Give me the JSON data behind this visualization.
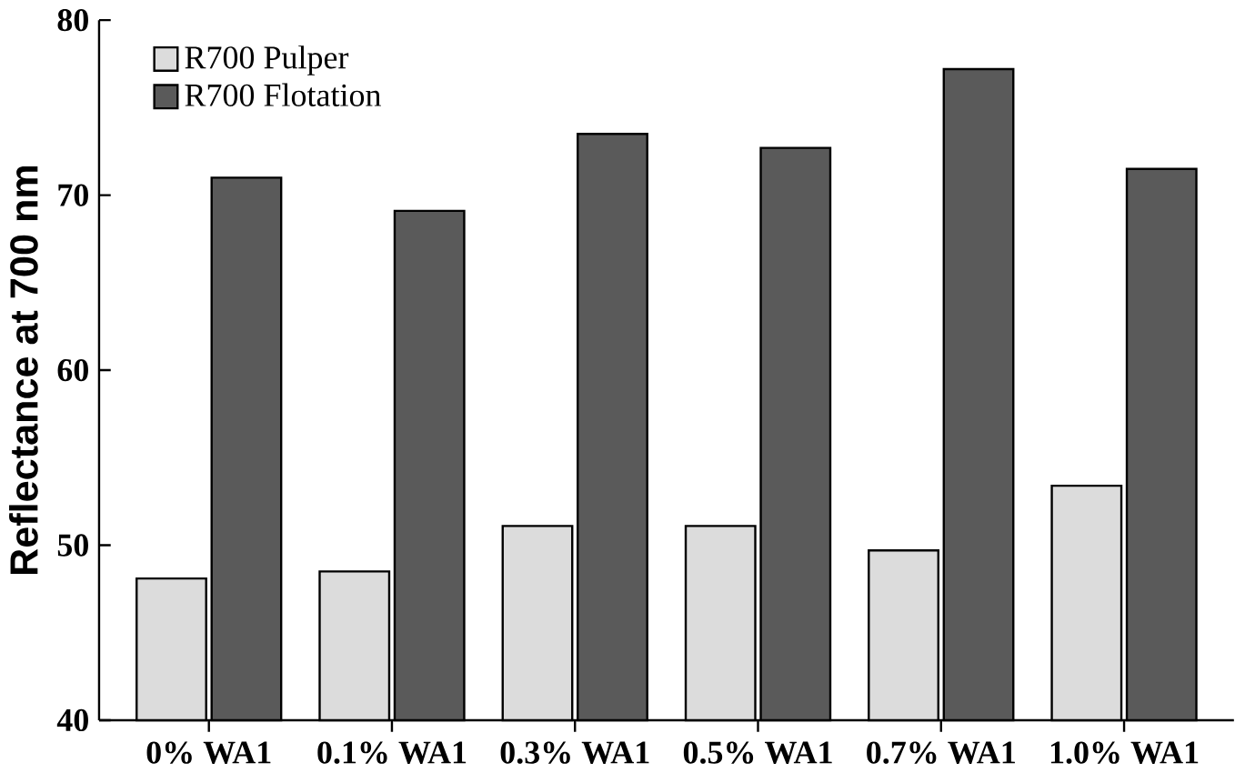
{
  "chart_data": {
    "type": "bar",
    "ylabel": "Reflectance at 700 nm",
    "categories": [
      "0% WA1",
      "0.1% WA1",
      "0.3% WA1",
      "0.5% WA1",
      "0.7% WA1",
      "1.0% WA1"
    ],
    "series": [
      {
        "name": "R700 Pulper",
        "color": "#dcdcdc",
        "values": [
          48.1,
          48.5,
          51.1,
          51.1,
          49.7,
          53.4
        ]
      },
      {
        "name": "R700 Flotation",
        "color": "#5a5a5a",
        "values": [
          71.0,
          69.1,
          73.5,
          72.7,
          77.2,
          71.5
        ]
      }
    ],
    "ylim": [
      40,
      80
    ],
    "yticks": [
      40,
      50,
      60,
      70,
      80
    ],
    "grid": false,
    "legend": "top left"
  }
}
